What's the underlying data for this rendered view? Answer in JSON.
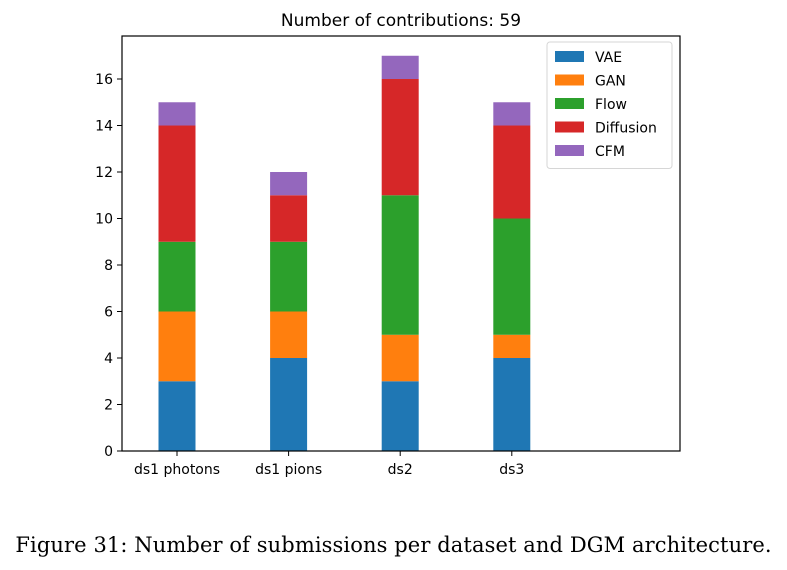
{
  "figure": {
    "caption": "Figure 31: Number of submissions per dataset and DGM architecture."
  },
  "chart_data": {
    "type": "bar",
    "stacked": true,
    "title": "Number of contributions: 59",
    "xlabel": "",
    "ylabel": "",
    "categories": [
      "ds1 photons",
      "ds1 pions",
      "ds2",
      "ds3"
    ],
    "series": [
      {
        "name": "VAE",
        "values": [
          3,
          4,
          3,
          4
        ],
        "color": "#1f77b4"
      },
      {
        "name": "GAN",
        "values": [
          3,
          2,
          2,
          1
        ],
        "color": "#ff7f0e"
      },
      {
        "name": "Flow",
        "values": [
          3,
          3,
          6,
          5
        ],
        "color": "#2ca02c"
      },
      {
        "name": "Diffusion",
        "values": [
          5,
          2,
          5,
          4
        ],
        "color": "#d62728"
      },
      {
        "name": "CFM",
        "values": [
          1,
          1,
          1,
          1
        ],
        "color": "#9467bd"
      }
    ],
    "ylim": [
      0,
      17.85
    ],
    "yticks": [
      0,
      2,
      4,
      6,
      8,
      10,
      12,
      14,
      16
    ],
    "x_slots": 5,
    "grid": false,
    "legend_position": "upper-right"
  }
}
